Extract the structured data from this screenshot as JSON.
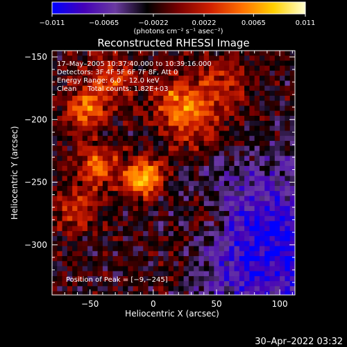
{
  "chart_data": {
    "type": "heatmap",
    "title": "Reconstructed RHESSI Image",
    "xlabel": "Heliocentric X (arcsec)",
    "ylabel": "Heliocentric Y (arcsec)",
    "xlim": [
      -80,
      112
    ],
    "ylim": [
      -340,
      -145
    ],
    "xticks": [
      -50,
      0,
      50,
      100
    ],
    "xtick_labels": [
      "−50",
      "0",
      "50",
      "100"
    ],
    "yticks": [
      -150,
      -200,
      -250,
      -300
    ],
    "ytick_labels": [
      "−150",
      "−200",
      "−250",
      "−300"
    ],
    "colorbar": {
      "min": -0.011,
      "max": 0.011,
      "ticks": [
        -0.011,
        -0.0065,
        -0.0022,
        0.0022,
        0.0065,
        0.011
      ],
      "tick_labels": [
        "−0.011",
        "−0.0065",
        "−0.0022",
        "0.0022",
        "0.0065",
        "0.011"
      ],
      "unit_label": "(photons cm⁻² s⁻¹ asec⁻²)",
      "stops": [
        "#0000ff",
        "#4400b8",
        "#6a3aa0",
        "#000000",
        "#7a0000",
        "#d02000",
        "#ff7000",
        "#ffd000",
        "#ffffd0"
      ]
    },
    "annotations": {
      "time": "17–May–2005 10:37:40.000 to 10:39:16.000",
      "detectors": "Detectors: 3F 4F 5F 6F 7F 8F, Att 0",
      "energy": "Energy Range: 6.0 – 12.0 keV",
      "clean": "Clean     Total counts: 1.82E+03",
      "peak": "Position of Peak = [−9,−245]"
    },
    "sources": [
      {
        "x": -9,
        "y": -245,
        "amp": 1.0,
        "sigma": 10
      },
      {
        "x": -45,
        "y": -235,
        "amp": 0.6,
        "sigma": 12
      },
      {
        "x": -55,
        "y": -190,
        "amp": 0.65,
        "sigma": 11
      },
      {
        "x": -35,
        "y": -165,
        "amp": 0.45,
        "sigma": 14
      },
      {
        "x": 30,
        "y": -200,
        "amp": 0.5,
        "sigma": 16
      },
      {
        "x": 15,
        "y": -180,
        "amp": 0.45,
        "sigma": 13
      },
      {
        "x": 50,
        "y": -170,
        "amp": 0.35,
        "sigma": 15
      },
      {
        "x": -65,
        "y": -270,
        "amp": 0.4,
        "sigma": 12
      },
      {
        "x": 40,
        "y": -275,
        "amp": 0.35,
        "sigma": 14
      },
      {
        "x": 20,
        "y": -310,
        "amp": 0.2,
        "sigma": 18
      }
    ],
    "negative_region": {
      "x": 90,
      "y": -300,
      "amp": -0.75,
      "sigma": 45
    },
    "peak": {
      "x": -9,
      "y": -245
    }
  },
  "footer": {
    "timestamp": "30–Apr–2022 03:32"
  }
}
